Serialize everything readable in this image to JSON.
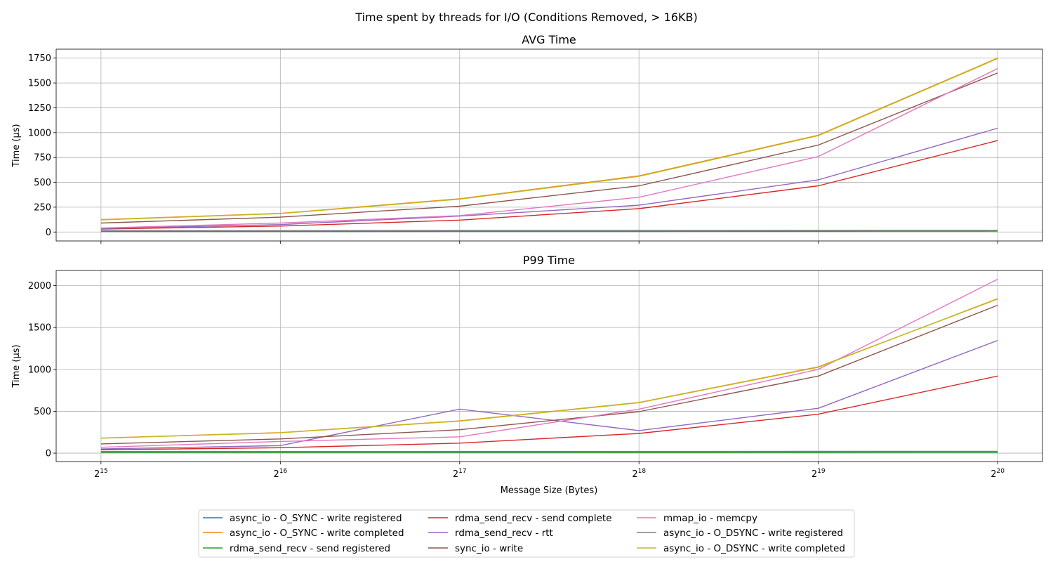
{
  "figure": {
    "title": "Time spent by threads for I/O (Conditions Removed, > 16KB)",
    "xlabel": "Message Size (Bytes)"
  },
  "chart_data": {
    "type": "line",
    "title": "Time spent by threads for I/O (Conditions Removed, > 16KB)",
    "x": [
      15,
      16,
      17,
      18,
      19,
      20
    ],
    "x_tick_labels": [
      {
        "base": "2",
        "exp": "15"
      },
      {
        "base": "2",
        "exp": "16"
      },
      {
        "base": "2",
        "exp": "17"
      },
      {
        "base": "2",
        "exp": "18"
      },
      {
        "base": "2",
        "exp": "19"
      },
      {
        "base": "2",
        "exp": "20"
      }
    ],
    "xscale": "log2",
    "grid": true,
    "legend_placement": "bottom-center",
    "series_meta": [
      {
        "name": "async_io - O_SYNC - write registered",
        "color": "#1f77b4"
      },
      {
        "name": "async_io - O_SYNC - write completed",
        "color": "#ff7f0e"
      },
      {
        "name": "rdma_send_recv - send registered",
        "color": "#2ca02c"
      },
      {
        "name": "rdma_send_recv - send complete",
        "color": "#d62728"
      },
      {
        "name": "rdma_send_recv - rtt",
        "color": "#9467bd"
      },
      {
        "name": "sync_io - write",
        "color": "#8c564b"
      },
      {
        "name": "mmap_io - memcpy",
        "color": "#e377c2"
      },
      {
        "name": "async_io - O_DSYNC - write registered",
        "color": "#7f7f7f"
      },
      {
        "name": "async_io - O_DSYNC - write completed",
        "color": "#bcbd22"
      }
    ],
    "subplots": [
      {
        "title": "AVG Time",
        "ylabel": "Time (µs)",
        "ylim": [
          -90,
          1840
        ],
        "yticks": [
          0,
          250,
          500,
          750,
          1000,
          1250,
          1500,
          1750
        ],
        "series": [
          {
            "name": "async_io - O_SYNC - write registered",
            "values": [
              12,
              12,
              12,
              13,
              13,
              14
            ]
          },
          {
            "name": "async_io - O_SYNC - write completed",
            "values": [
              125,
              188,
              335,
              565,
              975,
              1750
            ]
          },
          {
            "name": "rdma_send_recv - send registered",
            "values": [
              5,
              5,
              6,
              6,
              7,
              8
            ]
          },
          {
            "name": "rdma_send_recv - send complete",
            "values": [
              30,
              60,
              120,
              235,
              465,
              920
            ]
          },
          {
            "name": "rdma_send_recv - rtt",
            "values": [
              35,
              75,
              160,
              270,
              525,
              1045
            ]
          },
          {
            "name": "sync_io - write",
            "values": [
              90,
              150,
              260,
              465,
              875,
              1600
            ]
          },
          {
            "name": "mmap_io - memcpy",
            "values": [
              40,
              90,
              165,
              350,
              760,
              1645
            ]
          },
          {
            "name": "async_io - O_DSYNC - write registered",
            "values": [
              14,
              14,
              15,
              15,
              16,
              17
            ]
          },
          {
            "name": "async_io - O_DSYNC - write completed",
            "values": [
              122,
              185,
              330,
              560,
              970,
              1745
            ]
          }
        ]
      },
      {
        "title": "P99 Time",
        "ylabel": "Time (µs)",
        "ylim": [
          -100,
          2180
        ],
        "yticks": [
          0,
          500,
          1000,
          1500,
          2000
        ],
        "series": [
          {
            "name": "async_io - O_SYNC - write registered",
            "values": [
              18,
              18,
              18,
              19,
              19,
              20
            ]
          },
          {
            "name": "async_io - O_SYNC - write completed",
            "values": [
              180,
              245,
              385,
              605,
              1030,
              1840
            ]
          },
          {
            "name": "rdma_send_recv - send registered",
            "values": [
              8,
              8,
              8,
              9,
              9,
              10
            ]
          },
          {
            "name": "rdma_send_recv - send complete",
            "values": [
              40,
              65,
              120,
              235,
              465,
              920
            ]
          },
          {
            "name": "rdma_send_recv - rtt",
            "values": [
              50,
              90,
              525,
              270,
              535,
              1345
            ]
          },
          {
            "name": "sync_io - write",
            "values": [
              110,
              170,
              280,
              495,
              920,
              1765
            ]
          },
          {
            "name": "mmap_io - memcpy",
            "values": [
              70,
              140,
              195,
              525,
              1000,
              2075
            ]
          },
          {
            "name": "async_io - O_DSYNC - write registered",
            "values": [
              20,
              20,
              21,
              21,
              22,
              22
            ]
          },
          {
            "name": "async_io - O_DSYNC - write completed",
            "values": [
              178,
              243,
              382,
              602,
              1025,
              1845
            ]
          }
        ]
      }
    ]
  }
}
